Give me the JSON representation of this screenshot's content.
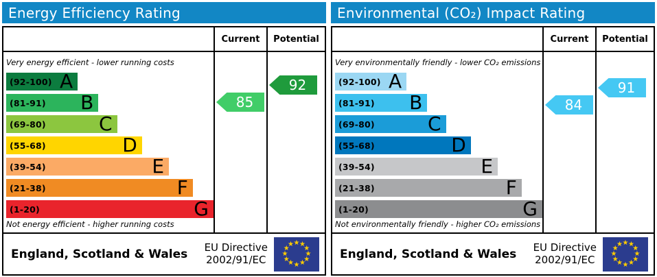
{
  "accent": {
    "header_blue": "#1287c5",
    "border_black": "#000000"
  },
  "panels": [
    {
      "title": "Energy Efficiency Rating",
      "columns": {
        "current": "Current",
        "potential": "Potential"
      },
      "top_note": "Very energy efficient - lower running costs",
      "bottom_note": "Not energy efficient - higher running costs",
      "bands": [
        {
          "range": "(92-100)",
          "letter": "A",
          "color": "#0c7c3f",
          "width_pct": 34.5
        },
        {
          "range": "(81-91)",
          "letter": "B",
          "color": "#2cb45c",
          "width_pct": 44.5
        },
        {
          "range": "(69-80)",
          "letter": "C",
          "color": "#8cc63f",
          "width_pct": 53.5
        },
        {
          "range": "(55-68)",
          "letter": "D",
          "color": "#ffd500",
          "width_pct": 65.5
        },
        {
          "range": "(39-54)",
          "letter": "E",
          "color": "#fbaa65",
          "width_pct": 78.5
        },
        {
          "range": "(21-38)",
          "letter": "F",
          "color": "#f08b23",
          "width_pct": 90
        },
        {
          "range": "(1-20)",
          "letter": "G",
          "color": "#e9242c",
          "width_pct": 100
        }
      ],
      "current": {
        "value": 85,
        "color": "#41cd68"
      },
      "potential": {
        "value": 92,
        "color": "#1f9b3c"
      },
      "footer": {
        "region": "England, Scotland & Wales",
        "directive_line1": "EU Directive",
        "directive_line2": "2002/91/EC"
      }
    },
    {
      "title": "Environmental (CO₂) Impact Rating",
      "columns": {
        "current": "Current",
        "potential": "Potential"
      },
      "top_note": "Very environmentally friendly - lower CO₂ emissions",
      "bottom_note": "Not environmentally friendly - higher CO₂ emissions",
      "bands": [
        {
          "range": "(92-100)",
          "letter": "A",
          "color": "#9bd7f3",
          "width_pct": 34.5
        },
        {
          "range": "(81-91)",
          "letter": "B",
          "color": "#3dc0ee",
          "width_pct": 44.5
        },
        {
          "range": "(69-80)",
          "letter": "C",
          "color": "#1b9cd8",
          "width_pct": 53.5
        },
        {
          "range": "(55-68)",
          "letter": "D",
          "color": "#0077bd",
          "width_pct": 65.5
        },
        {
          "range": "(39-54)",
          "letter": "E",
          "color": "#c6c7c9",
          "width_pct": 78.5
        },
        {
          "range": "(21-38)",
          "letter": "F",
          "color": "#a8a9ab",
          "width_pct": 90
        },
        {
          "range": "(1-20)",
          "letter": "G",
          "color": "#8c8d8f",
          "width_pct": 100
        }
      ],
      "current": {
        "value": 84,
        "color": "#45c8f3"
      },
      "potential": {
        "value": 91,
        "color": "#45c8f3"
      },
      "footer": {
        "region": "England, Scotland & Wales",
        "directive_line1": "EU Directive",
        "directive_line2": "2002/91/EC"
      }
    }
  ],
  "eu_flag": {
    "background": "#2b3c8e",
    "star_color": "#ffcc00",
    "star_count": 12
  },
  "chart_data": [
    {
      "type": "bar",
      "title": "Energy Efficiency Rating",
      "categories": [
        "A (92-100)",
        "B (81-91)",
        "C (69-80)",
        "D (55-68)",
        "E (39-54)",
        "F (21-38)",
        "G (1-20)"
      ],
      "values": [
        34.5,
        44.5,
        53.5,
        65.5,
        78.5,
        90,
        100
      ],
      "ylabel": "band bar length (% of column width)",
      "current_rating": 85,
      "current_band": "B",
      "potential_rating": 92,
      "potential_band": "A",
      "annotations": [
        "Very energy efficient - lower running costs",
        "Not energy efficient - higher running costs",
        "England, Scotland & Wales",
        "EU Directive 2002/91/EC"
      ]
    },
    {
      "type": "bar",
      "title": "Environmental (CO₂) Impact Rating",
      "categories": [
        "A (92-100)",
        "B (81-91)",
        "C (69-80)",
        "D (55-68)",
        "E (39-54)",
        "F (21-38)",
        "G (1-20)"
      ],
      "values": [
        34.5,
        44.5,
        53.5,
        65.5,
        78.5,
        90,
        100
      ],
      "ylabel": "band bar length (% of column width)",
      "current_rating": 84,
      "current_band": "B",
      "potential_rating": 91,
      "potential_band": "B",
      "annotations": [
        "Very environmentally friendly - lower CO₂ emissions",
        "Not environmentally friendly - higher CO₂ emissions",
        "England, Scotland & Wales",
        "EU Directive 2002/91/EC"
      ]
    }
  ]
}
